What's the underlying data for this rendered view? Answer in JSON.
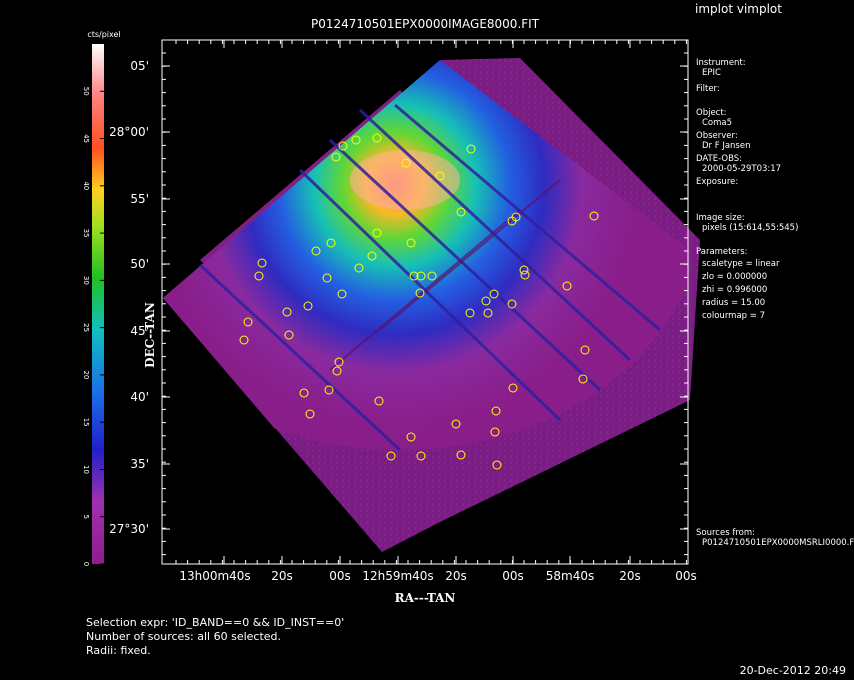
{
  "app_title": "implot vimplot",
  "image_title": "P0124710501EPX0000IMAGE8000.FIT",
  "colorbar": {
    "unit_label": "cts/pixel",
    "ticks": [
      "0",
      "5",
      "10",
      "15",
      "20",
      "25",
      "30",
      "35",
      "40",
      "45",
      "50"
    ]
  },
  "axes": {
    "ylabel": "DEC--TAN",
    "xlabel": "RA---TAN",
    "yticks": [
      "05'",
      "28°00'",
      "55'",
      "50'",
      "45'",
      "40'",
      "35'",
      "27°30'"
    ],
    "xticks": [
      "13h00m40s",
      "20s",
      "00s",
      "12h59m40s",
      "20s",
      "00s",
      "58m40s",
      "20s",
      "00s"
    ]
  },
  "info_panel": [
    {
      "label": "Instrument:",
      "value": "EPIC"
    },
    {
      "label": "Filter:",
      "value": ""
    },
    {
      "label": "Object:",
      "value": "Coma5"
    },
    {
      "label": "Observer:",
      "value": "Dr F Jansen"
    },
    {
      "label": "DATE-OBS:",
      "value": "2000-05-29T03:17"
    },
    {
      "label": "Exposure:",
      "value": ""
    },
    {
      "label": "Image size:",
      "value": "pixels (15:614,55:545)"
    },
    {
      "label": "Parameters:",
      "lines": [
        "scaletype = linear",
        "zlo = 0.000000",
        "zhi = 0.996000",
        "radius = 15.00",
        "colourmap = 7"
      ]
    },
    {
      "label": "Sources from:",
      "value": "P0124710501EPX0000MSRLI0000.F"
    }
  ],
  "footer": {
    "selection": "Selection expr: 'ID_BAND==0 && ID_INST==0'",
    "count": "Number of sources: all 60 selected.",
    "radii": "Radii: fixed.",
    "timestamp": "20-Dec-2012 20:49"
  },
  "colors": {
    "background": "#000000",
    "frame": "#ffffff",
    "source_marker": "#ffff00",
    "low": "#8e1d8e",
    "high": "#ffffff"
  },
  "icons": {
    "source_marker": "circle-marker-icon"
  }
}
